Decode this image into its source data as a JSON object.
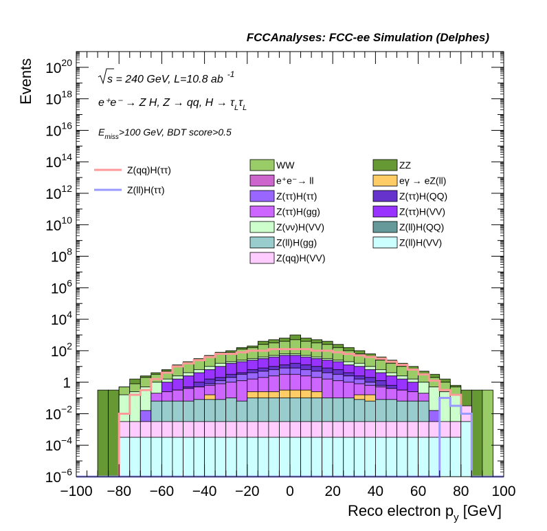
{
  "header": "FCCAnalyses: FCC-ee Simulation (Delphes)",
  "annotations": {
    "sqrt_s": "s",
    "energy_lumi": " = 240 GeV, L=10.8 ab",
    "lumi_exp": "-1",
    "process": "e⁺e⁻ → Z H, Z → qq, H → τ",
    "process_sub1": "L",
    "process_tau2": "τ",
    "process_sub2": "L",
    "cut_E": "E",
    "cut_sub": "miss",
    "cut_rest": ">100 GeV, BDT score>0.5"
  },
  "chart_data": {
    "type": "area",
    "title": "",
    "xlabel": "Reco electron p",
    "xlabel_sub": "y",
    "xlabel_unit": " [GeV]",
    "ylabel": "Events",
    "xlim": [
      -100,
      100
    ],
    "ylim": [
      1e-06,
      1e+21
    ],
    "log_y": true,
    "x_ticks": [
      "−100",
      "−80",
      "−60",
      "−40",
      "−20",
      "0",
      "20",
      "40",
      "60",
      "80",
      "100"
    ],
    "y_ticks": [
      {
        "mant": "10",
        "exp": "−6"
      },
      {
        "mant": "10",
        "exp": "−4"
      },
      {
        "mant": "10",
        "exp": "−2"
      },
      {
        "mant": "1",
        "exp": ""
      },
      {
        "mant": "10",
        "exp": "2"
      },
      {
        "mant": "10",
        "exp": "4"
      },
      {
        "mant": "10",
        "exp": "6"
      },
      {
        "mant": "10",
        "exp": "8"
      },
      {
        "mant": "10",
        "exp": "10"
      },
      {
        "mant": "10",
        "exp": "12"
      },
      {
        "mant": "10",
        "exp": "14"
      },
      {
        "mant": "10",
        "exp": "16"
      },
      {
        "mant": "10",
        "exp": "18"
      },
      {
        "mant": "10",
        "exp": "20"
      }
    ],
    "bin_edges": [
      -100,
      -95,
      -90,
      -85,
      -80,
      -75,
      -70,
      -65,
      -60,
      -55,
      -50,
      -45,
      -40,
      -35,
      -30,
      -25,
      -20,
      -15,
      -10,
      -5,
      0,
      5,
      10,
      15,
      20,
      25,
      30,
      35,
      40,
      45,
      50,
      55,
      60,
      65,
      70,
      75,
      80,
      85,
      90,
      95,
      100
    ],
    "stack_totals_log10": [
      -6,
      -6,
      -0.5,
      -0.5,
      -0.3,
      -0.1,
      0.4,
      0.6,
      0.8,
      1.1,
      1.3,
      1.5,
      1.7,
      1.9,
      2.0,
      2.2,
      2.3,
      2.6,
      2.7,
      2.8,
      3.0,
      2.8,
      2.7,
      2.6,
      2.4,
      2.2,
      2.0,
      1.8,
      1.6,
      1.4,
      1.2,
      1.0,
      0.7,
      0.5,
      0.2,
      -0.2,
      -0.5,
      -0.5,
      -0.5,
      -6
    ],
    "stack_series": [
      {
        "name": "Z(ll)H(VV)",
        "color": "#ccffff",
        "values_log10": [
          -6,
          -6,
          -6,
          -6,
          -3.5,
          -3.5,
          -3.5,
          -3.5,
          -3.5,
          -3.5,
          -3.5,
          -3.5,
          -3.5,
          -3.5,
          -3.5,
          -3.5,
          -3.5,
          -3.5,
          -3.5,
          -3.5,
          -3.5,
          -3.5,
          -3.5,
          -3.5,
          -3.5,
          -3.5,
          -3.5,
          -3.5,
          -3.5,
          -3.5,
          -3.5,
          -3.5,
          -3.5,
          -3.5,
          -3.5,
          -3.5,
          -2.5,
          -6,
          -6,
          -6
        ]
      },
      {
        "name": "Z(qq)H(VV)",
        "color": "#ffccff",
        "values_log10": [
          -6,
          -6,
          -6,
          -6,
          -2.5,
          -2.5,
          -2.5,
          -2.5,
          -2.5,
          -2.5,
          -2.5,
          -2.5,
          -2.5,
          -2.5,
          -2.5,
          -2.5,
          -2.5,
          -2.5,
          -2.5,
          -2.5,
          -2.5,
          -2.5,
          -2.5,
          -2.5,
          -2.5,
          -2.5,
          -2.5,
          -2.5,
          -2.5,
          -2.5,
          -2.5,
          -2.5,
          -2.5,
          -2.5,
          -2.5,
          -2.5,
          -1.5,
          -6,
          -6,
          -6
        ]
      },
      {
        "name": "Z(ll)H(gg)",
        "color": "#99cccc",
        "values_log10": [
          -6,
          -6,
          -6,
          -6,
          -6,
          -6,
          -6,
          -1.2,
          -1.2,
          -1.2,
          -1.2,
          -1.1,
          -1.1,
          -1.1,
          -1.0,
          -1.2,
          -1.0,
          -1.0,
          -1.0,
          -1.0,
          -1.0,
          -1.0,
          -1.0,
          -1.0,
          -1.0,
          -1.0,
          -1.1,
          -1.2,
          -1.1,
          -1.1,
          -1.2,
          -1.2,
          -1.2,
          -6,
          -6,
          -6,
          -6,
          -6,
          -6,
          -6
        ]
      },
      {
        "name": "eγ → eZ(ll)",
        "color": "#ffcc66",
        "values_log10": [
          -6,
          -6,
          -6,
          -6,
          -6,
          -6,
          -6,
          -6,
          -6,
          -6,
          -6,
          -6,
          -0.8,
          -6,
          -6,
          -6,
          -0.6,
          -0.6,
          -0.6,
          -0.5,
          -0.5,
          -0.5,
          -0.6,
          -6,
          -6,
          -6,
          -0.8,
          -0.8,
          -6,
          -6,
          -6,
          -6,
          -6,
          -6,
          -6,
          -6,
          -6,
          -6,
          -6,
          -6
        ]
      },
      {
        "name": "Z(ττ)H(gg)",
        "color": "#cc66ff",
        "values_log10": [
          -6,
          -6,
          -6,
          -6,
          -6,
          -6,
          -6,
          -0.7,
          -0.6,
          -0.5,
          -0.4,
          -0.3,
          -0.2,
          -0.1,
          0.0,
          0.1,
          0.2,
          0.3,
          0.4,
          0.5,
          0.5,
          0.4,
          0.3,
          0.2,
          0.1,
          0.0,
          -0.1,
          -0.2,
          -0.3,
          -0.4,
          -0.5,
          -0.6,
          -0.7,
          -6,
          -6,
          -6,
          -6,
          -6,
          -6,
          -6
        ]
      },
      {
        "name": "Z(ττ)H(ττ)",
        "color": "#9966ff",
        "values_log10": [
          -6,
          -6,
          -6,
          -6,
          -6,
          -6,
          -1.8,
          -1.8,
          -1.2,
          -0.8,
          -0.5,
          -0.3,
          -0.1,
          0.1,
          0.3,
          0.5,
          0.6,
          0.7,
          0.8,
          0.9,
          0.9,
          0.8,
          0.7,
          0.6,
          0.5,
          0.4,
          0.2,
          0.0,
          -0.2,
          -0.5,
          -0.8,
          -1.0,
          -1.5,
          -1.8,
          -6,
          -6,
          -6,
          -6,
          -6,
          -6
        ]
      },
      {
        "name": "Z(ττ)H(QQ)",
        "color": "#6633cc",
        "values_log10": [
          -6,
          -6,
          -6,
          -6,
          -6,
          -6,
          -6,
          -6,
          -6,
          -0.5,
          -0.3,
          0.0,
          0.2,
          0.3,
          0.5,
          0.6,
          0.8,
          0.9,
          1.0,
          1.1,
          1.2,
          1.1,
          1.0,
          0.9,
          0.8,
          0.6,
          0.4,
          0.3,
          0.1,
          -0.2,
          -0.5,
          -6,
          -6,
          -6,
          -6,
          -6,
          -6,
          -6,
          -6,
          -6
        ]
      },
      {
        "name": "Z(ττ)H(VV)",
        "color": "#9933ff",
        "values_log10": [
          -6,
          -6,
          -6,
          -6,
          -6,
          -6,
          -6,
          -6,
          0.0,
          0.2,
          0.4,
          0.6,
          0.8,
          1.0,
          1.2,
          1.3,
          1.4,
          1.5,
          1.6,
          1.7,
          1.7,
          1.6,
          1.5,
          1.4,
          1.3,
          1.1,
          1.0,
          0.8,
          0.6,
          0.4,
          0.2,
          0.0,
          -6,
          -6,
          -6,
          -6,
          -6,
          -6,
          -6,
          -6
        ]
      },
      {
        "name": "Z(νν)H(VV)",
        "color": "#ccffcc",
        "values_log10": [
          -6,
          -6,
          -6,
          -6,
          -0.8,
          -0.6,
          -0.3,
          0.0,
          0.2,
          0.4,
          0.6,
          0.8,
          1.0,
          1.2,
          1.3,
          1.4,
          1.5,
          1.6,
          1.7,
          1.8,
          1.8,
          1.7,
          1.6,
          1.5,
          1.4,
          1.3,
          1.2,
          1.0,
          0.8,
          0.6,
          0.4,
          0.2,
          0.0,
          -0.3,
          -0.6,
          -0.8,
          -6,
          -6,
          -6,
          -6
        ]
      },
      {
        "name": "Z(ll)H(QQ)",
        "color": "#669999",
        "values_log10": [
          -6,
          -6,
          -6,
          -6,
          -6,
          -6,
          -6,
          -6,
          -6,
          -6,
          -6,
          -6,
          -6,
          -6,
          -6,
          -6,
          -6,
          -6,
          -6,
          -6,
          -6,
          -6,
          -6,
          -6,
          -6,
          -6,
          -6,
          -6,
          -6,
          -6,
          -6,
          -6,
          -6,
          -6,
          -6,
          -6,
          -6,
          -6,
          -6,
          -6
        ]
      },
      {
        "name": "e⁺e⁻→ ll",
        "color": "#cc66cc",
        "values_log10": [
          -6,
          -6,
          -6,
          -6,
          -6,
          -6,
          -6,
          -6,
          -6,
          -6,
          -6,
          -6,
          -6,
          -6,
          -6,
          -6,
          -6,
          -6,
          -6,
          -6,
          -6,
          -6,
          -6,
          -6,
          -6,
          -6,
          -6,
          -6,
          -6,
          -6,
          -6,
          -6,
          -6,
          -6,
          -6,
          -6,
          -6,
          -6,
          -6,
          -6
        ]
      },
      {
        "name": "WW",
        "color": "#99cc66",
        "values_log10": [
          -6,
          -6,
          -6,
          -6,
          -0.3,
          -0.1,
          0.3,
          0.5,
          0.7,
          1.0,
          1.2,
          1.4,
          1.6,
          1.8,
          1.9,
          2.1,
          2.2,
          2.4,
          2.5,
          2.6,
          2.7,
          2.6,
          2.5,
          2.4,
          2.2,
          2.0,
          1.8,
          1.6,
          1.4,
          1.2,
          1.0,
          0.8,
          0.5,
          0.3,
          0.0,
          -0.3,
          -6,
          -6,
          -0.5,
          -6
        ]
      },
      {
        "name": "ZZ",
        "color": "#669933",
        "values_log10": [
          -6,
          -6,
          -0.5,
          -0.5,
          -0.3,
          0.2,
          0.4,
          0.6,
          0.8,
          1.1,
          1.3,
          1.5,
          1.7,
          1.9,
          2.0,
          2.2,
          2.3,
          2.6,
          2.7,
          2.8,
          3.0,
          2.8,
          2.7,
          2.6,
          2.4,
          2.2,
          2.0,
          1.8,
          1.6,
          1.4,
          1.2,
          1.0,
          0.7,
          0.5,
          0.2,
          -0.2,
          -0.5,
          -0.5,
          -6,
          -6
        ]
      }
    ],
    "signal_series": [
      {
        "name": "Z(qq)H(ττ)",
        "color": "#ff9999",
        "values_log10": [
          -6,
          -6,
          -6,
          -6,
          -2.0,
          -0.8,
          -0.5,
          0.2,
          0.6,
          1.0,
          1.2,
          1.4,
          1.6,
          1.8,
          1.8,
          1.9,
          2.0,
          2.0,
          2.1,
          2.1,
          2.1,
          2.1,
          2.0,
          2.0,
          1.9,
          1.8,
          1.7,
          1.6,
          1.5,
          1.3,
          1.1,
          0.8,
          0.5,
          0.1,
          -0.5,
          -0.8,
          -2.0,
          -6,
          -6,
          -6
        ]
      },
      {
        "name": "Z(ll)H(ττ)",
        "color": "#9999ff",
        "values_log10": [
          -6,
          -6,
          -6,
          -6,
          -6,
          -6,
          -6,
          -6,
          -6,
          -6,
          -6,
          -6,
          -6,
          -6,
          -6,
          -6,
          -6,
          -6,
          -6,
          -6,
          -6,
          -6,
          -6,
          -6,
          -6,
          -6,
          -6,
          -6,
          -6,
          -6,
          -6,
          -6,
          -6,
          -6,
          -1.0,
          -1.5,
          -2.0,
          -6,
          -6,
          -6
        ]
      }
    ],
    "legend_signal": [
      {
        "label": "Z(qq)H(ττ)",
        "color": "#ff9999"
      },
      {
        "label": "Z(ll)H(ττ)",
        "color": "#9999ff"
      }
    ],
    "legend_stack_left": [
      {
        "label": "WW",
        "color": "#99cc66"
      },
      {
        "label": "e⁺e⁻→ ll",
        "color": "#cc66cc"
      },
      {
        "label": "Z(ττ)H(ττ)",
        "color": "#9966ff"
      },
      {
        "label": "Z(ττ)H(gg)",
        "color": "#cc66ff"
      },
      {
        "label": "Z(νν)H(VV)",
        "color": "#ccffcc"
      },
      {
        "label": "Z(ll)H(gg)",
        "color": "#99cccc"
      },
      {
        "label": "Z(qq)H(VV)",
        "color": "#ffccff"
      }
    ],
    "legend_stack_right": [
      {
        "label": "ZZ",
        "color": "#669933"
      },
      {
        "label": "eγ → eZ(ll)",
        "color": "#ffcc66"
      },
      {
        "label": "Z(ττ)H(QQ)",
        "color": "#6633cc"
      },
      {
        "label": "Z(ττ)H(VV)",
        "color": "#9933ff"
      },
      {
        "label": "Z(ll)H(QQ)",
        "color": "#669999"
      },
      {
        "label": "Z(ll)H(VV)",
        "color": "#ccffff"
      }
    ]
  }
}
